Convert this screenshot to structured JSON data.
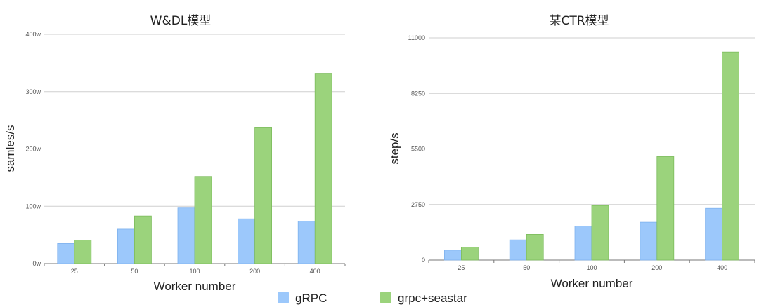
{
  "colors": {
    "grpc": "#9cc8fb",
    "seastar": "#9bd37c",
    "grpc_edge": "#7fb2ee",
    "seastar_edge": "#7cbc5c"
  },
  "legend": [
    {
      "label": "gRPC",
      "color_key": "grpc"
    },
    {
      "label": "grpc+seastar",
      "color_key": "seastar"
    }
  ],
  "chart_data": [
    {
      "type": "bar",
      "title": "W&DL模型",
      "xlabel": "Worker number",
      "ylabel": "samles/s",
      "categories": [
        "25",
        "50",
        "100",
        "200",
        "400"
      ],
      "ylim": [
        0,
        4000000
      ],
      "yticks": [
        {
          "value": 0,
          "label": "0w"
        },
        {
          "value": 1000000,
          "label": "100w"
        },
        {
          "value": 2000000,
          "label": "200w"
        },
        {
          "value": 3000000,
          "label": "300w"
        },
        {
          "value": 4000000,
          "label": "400w"
        }
      ],
      "grid": true,
      "series": [
        {
          "name": "gRPC",
          "color_key": "grpc",
          "values": [
            350000,
            600000,
            970000,
            780000,
            740000
          ]
        },
        {
          "name": "grpc+seastar",
          "color_key": "seastar",
          "values": [
            410000,
            830000,
            1520000,
            2380000,
            3320000
          ]
        }
      ]
    },
    {
      "type": "bar",
      "title": "某CTR模型",
      "xlabel": "Worker number",
      "ylabel": "step/s",
      "categories": [
        "25",
        "50",
        "100",
        "200",
        "400"
      ],
      "ylim": [
        0,
        11000
      ],
      "yticks": [
        {
          "value": 0,
          "label": "0"
        },
        {
          "value": 2750,
          "label": "2750"
        },
        {
          "value": 5500,
          "label": "5500"
        },
        {
          "value": 8250,
          "label": "8250"
        },
        {
          "value": 11000,
          "label": "11000"
        }
      ],
      "grid": true,
      "series": [
        {
          "name": "gRPC",
          "color_key": "grpc",
          "values": [
            490,
            1000,
            1680,
            1870,
            2560
          ]
        },
        {
          "name": "grpc+seastar",
          "color_key": "seastar",
          "values": [
            640,
            1270,
            2700,
            5120,
            10300
          ]
        }
      ]
    }
  ]
}
